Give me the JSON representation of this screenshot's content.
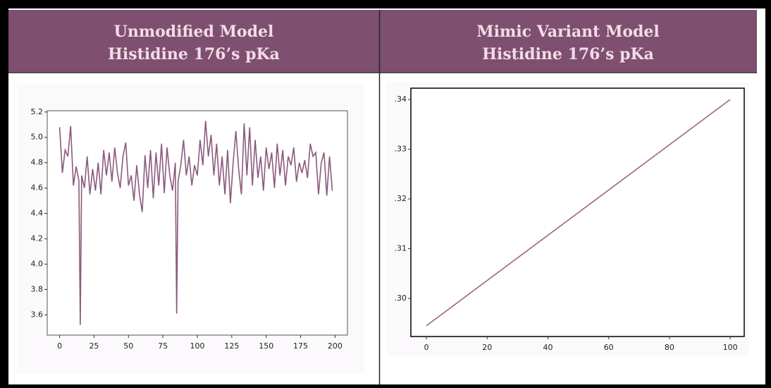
{
  "chart_data": [
    {
      "type": "line",
      "title": "Unmodified Model",
      "subtitle": "Histidine 176’s pKa",
      "color": "#8b5a7d",
      "x": [
        0,
        2,
        4,
        6,
        8,
        10,
        12,
        14,
        15,
        16,
        18,
        20,
        22,
        24,
        26,
        28,
        30,
        32,
        34,
        36,
        38,
        40,
        42,
        44,
        46,
        48,
        50,
        52,
        54,
        56,
        58,
        60,
        62,
        64,
        66,
        68,
        70,
        72,
        74,
        76,
        78,
        80,
        82,
        84,
        85,
        86,
        88,
        90,
        92,
        94,
        96,
        98,
        100,
        102,
        104,
        106,
        108,
        110,
        112,
        114,
        116,
        118,
        120,
        122,
        124,
        126,
        128,
        130,
        132,
        134,
        136,
        138,
        140,
        142,
        144,
        146,
        148,
        150,
        152,
        154,
        156,
        158,
        160,
        162,
        164,
        166,
        168,
        170,
        172,
        174,
        176,
        178,
        180,
        182,
        184,
        186,
        188,
        190,
        192,
        194,
        196,
        198
      ],
      "values": [
        5.08,
        4.72,
        4.9,
        4.85,
        5.09,
        4.62,
        4.77,
        4.66,
        3.52,
        4.7,
        4.6,
        4.85,
        4.55,
        4.75,
        4.58,
        4.8,
        4.55,
        4.9,
        4.7,
        4.88,
        4.65,
        4.92,
        4.72,
        4.6,
        4.85,
        4.96,
        4.62,
        4.7,
        4.5,
        4.78,
        4.55,
        4.41,
        4.86,
        4.6,
        4.9,
        4.52,
        4.88,
        4.62,
        4.95,
        4.56,
        4.92,
        4.7,
        4.58,
        4.8,
        3.61,
        4.65,
        4.78,
        4.98,
        4.7,
        4.85,
        4.62,
        4.78,
        4.7,
        4.98,
        4.78,
        5.13,
        4.85,
        5.02,
        4.7,
        4.95,
        4.62,
        4.85,
        4.55,
        4.9,
        4.48,
        4.8,
        5.05,
        4.75,
        4.55,
        5.11,
        4.7,
        5.08,
        4.62,
        4.98,
        4.68,
        4.85,
        4.58,
        4.92,
        4.75,
        4.88,
        4.6,
        4.95,
        4.7,
        4.9,
        4.62,
        4.85,
        4.78,
        4.92,
        4.65,
        4.8,
        4.72,
        4.82,
        4.68,
        4.95,
        4.85,
        4.88,
        4.55,
        4.8,
        4.88,
        4.54,
        4.85,
        4.58
      ],
      "xlim": [
        -9,
        209
      ],
      "xticks": [
        0,
        25,
        50,
        75,
        100,
        125,
        150,
        175,
        200
      ],
      "ylim": [
        3.44,
        5.21
      ],
      "yticks": [
        3.6,
        3.8,
        {
          "value": 4,
          "label": "4.0"
        },
        4.2,
        4.4,
        4.6,
        4.8,
        {
          "value": 5,
          "label": "5.0"
        },
        5.2
      ]
    },
    {
      "type": "line",
      "title": "Mimic Variant Model",
      "subtitle": "Histidine 176’s pKa",
      "color": "#9c6580",
      "x": [
        0,
        100
      ],
      "values": [
        0.2945,
        0.34
      ],
      "xlim": [
        -5.1,
        104.6
      ],
      "xticks": [
        0,
        20,
        40,
        60,
        80,
        100
      ],
      "ylim": [
        0.29234,
        0.34227
      ],
      "yticks": [
        {
          "value": 0.3,
          "label": ".30"
        },
        {
          "value": 0.31,
          "label": ".31"
        },
        {
          "value": 0.32,
          "label": ".32"
        },
        {
          "value": 0.33,
          "label": ".33"
        },
        {
          "value": 0.34,
          "label": ".34"
        }
      ]
    }
  ]
}
